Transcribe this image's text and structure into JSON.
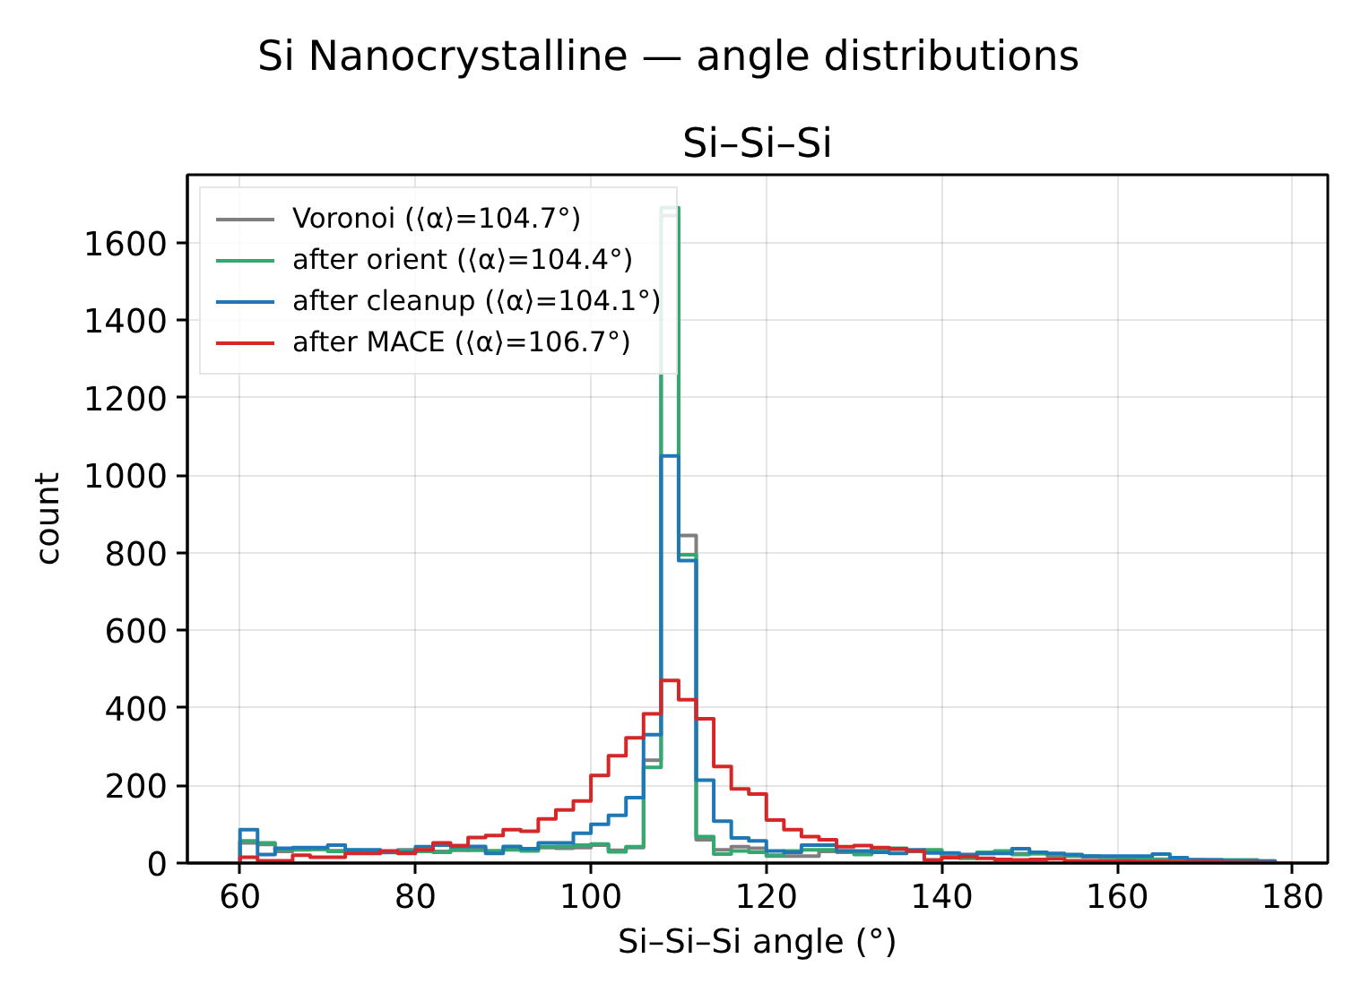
{
  "chart_data": {
    "type": "histogram",
    "title": "Si Nanocrystalline — angle distributions",
    "subtitle": "Si–Si–Si",
    "xlabel": "Si–Si–Si angle (°)",
    "ylabel": "count",
    "bins": [
      60,
      62,
      64,
      66,
      68,
      70,
      72,
      74,
      76,
      78,
      80,
      82,
      84,
      86,
      88,
      90,
      92,
      94,
      96,
      98,
      100,
      102,
      104,
      106,
      108,
      110,
      112,
      114,
      116,
      118,
      120,
      122,
      124,
      126,
      128,
      130,
      132,
      134,
      136,
      138,
      140,
      142,
      144,
      146,
      148,
      150,
      152,
      154,
      156,
      158,
      160,
      162,
      164,
      166,
      168,
      170,
      172,
      174,
      176,
      178,
      180
    ],
    "series": [
      {
        "name": "Voronoi (⟨α⟩=104.7°)",
        "color": "#7f7f7f",
        "values": [
          52,
          48,
          30,
          34,
          36,
          32,
          30,
          28,
          30,
          34,
          32,
          30,
          33,
          35,
          30,
          36,
          33,
          40,
          38,
          40,
          46,
          33,
          40,
          265,
          1670,
          845,
          60,
          34,
          42,
          38,
          18,
          18,
          18,
          30,
          28,
          25,
          33,
          35,
          30,
          32,
          18,
          15,
          25,
          28,
          24,
          24,
          20,
          20,
          16,
          15,
          14,
          12,
          10,
          8,
          8,
          7,
          7,
          6,
          4,
          0
        ]
      },
      {
        "name": "after orient (⟨α⟩=104.4°)",
        "color": "#33a870",
        "values": [
          57,
          52,
          35,
          36,
          35,
          30,
          33,
          30,
          27,
          32,
          30,
          28,
          35,
          33,
          32,
          34,
          31,
          42,
          43,
          46,
          49,
          29,
          42,
          247,
          1690,
          795,
          68,
          23,
          31,
          28,
          20,
          31,
          34,
          34,
          31,
          22,
          37,
          38,
          31,
          34,
          15,
          12,
          28,
          31,
          22,
          25,
          22,
          18,
          18,
          15,
          12,
          12,
          8,
          8,
          8,
          8,
          8,
          8,
          5,
          0
        ]
      },
      {
        "name": "after cleanup (⟨α⟩=104.1°)",
        "color": "#1f77b4",
        "values": [
          86,
          22,
          38,
          40,
          40,
          46,
          34,
          34,
          28,
          28,
          42,
          46,
          43,
          43,
          25,
          43,
          37,
          52,
          52,
          77,
          100,
          123,
          169,
          331,
          1050,
          780,
          214,
          108,
          65,
          57,
          31,
          28,
          46,
          46,
          31,
          31,
          28,
          25,
          34,
          26,
          26,
          22,
          25,
          25,
          37,
          28,
          25,
          22,
          18,
          18,
          18,
          18,
          23,
          14,
          8,
          8,
          6,
          6,
          5,
          0
        ]
      },
      {
        "name": "after MACE (⟨α⟩=106.7°)",
        "color": "#d62728",
        "values": [
          15,
          6,
          6,
          20,
          15,
          15,
          25,
          25,
          31,
          25,
          34,
          52,
          45,
          66,
          71,
          86,
          82,
          114,
          137,
          160,
          226,
          277,
          323,
          385,
          471,
          421,
          372,
          249,
          191,
          178,
          111,
          86,
          68,
          60,
          42,
          45,
          40,
          37,
          31,
          8,
          14,
          17,
          12,
          9,
          8,
          9,
          11,
          6,
          6,
          5,
          5,
          4,
          4,
          3,
          3,
          3,
          2,
          2,
          1,
          0
        ]
      }
    ],
    "xlim": [
      54,
      184
    ],
    "ylim": [
      0,
      1775
    ],
    "xticks": [
      60,
      80,
      100,
      120,
      140,
      160,
      180
    ],
    "yticks": [
      0,
      200,
      400,
      600,
      800,
      1000,
      1200,
      1400,
      1600
    ],
    "grid": true,
    "legend": "top left"
  }
}
